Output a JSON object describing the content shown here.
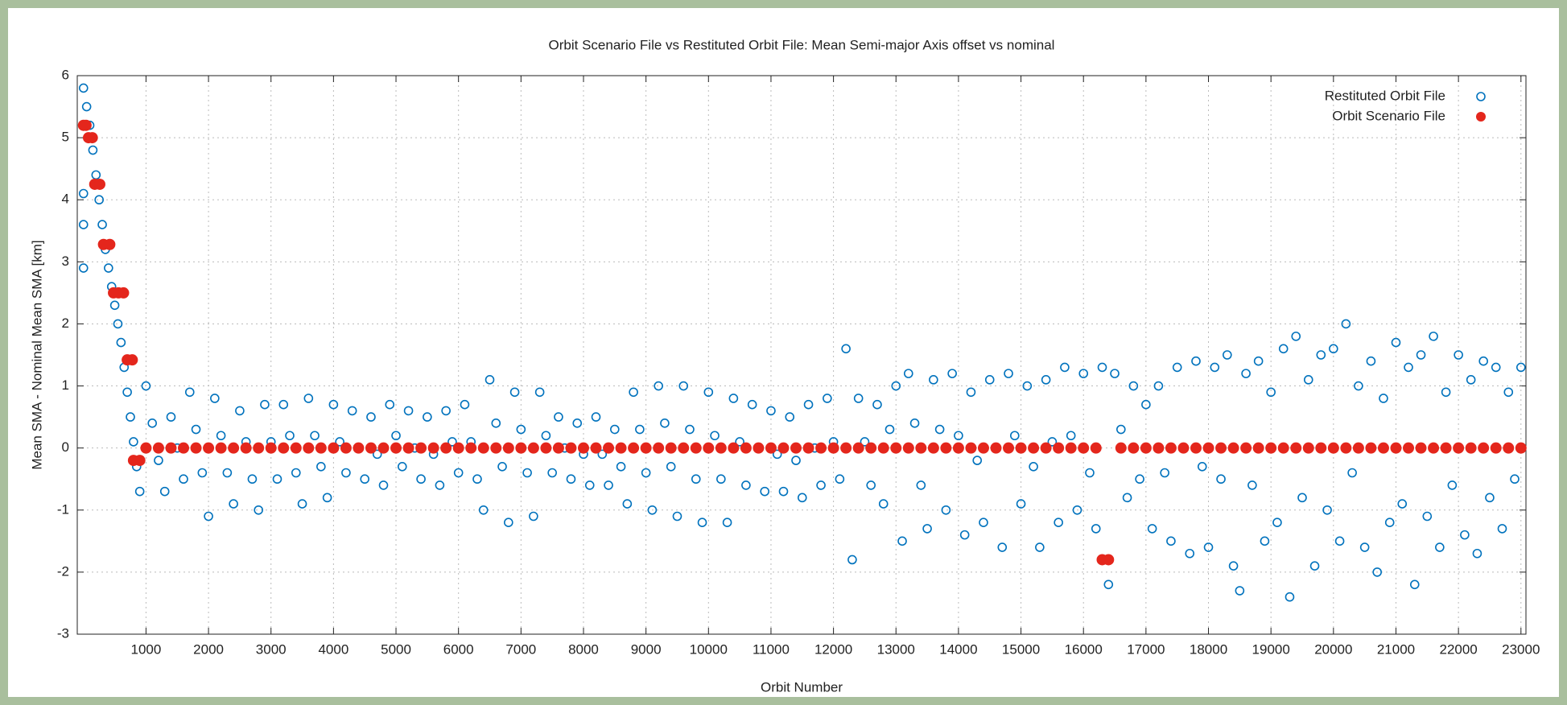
{
  "chart_data": {
    "type": "scatter",
    "title": "Orbit Scenario File vs Restituted Orbit File: Mean Semi-major Axis offset vs nominal",
    "x_label": "Orbit Number",
    "y_label": "Mean SMA - Nominal Mean SMA [km]",
    "xlim": [
      -100,
      23080
    ],
    "ylim": [
      -3,
      6
    ],
    "xticks": [
      1000,
      2000,
      3000,
      4000,
      5000,
      6000,
      7000,
      8000,
      9000,
      10000,
      11000,
      12000,
      13000,
      14000,
      15000,
      16000,
      17000,
      18000,
      19000,
      20000,
      21000,
      22000,
      23000
    ],
    "yticks": [
      -3,
      -2,
      -1,
      0,
      1,
      2,
      3,
      4,
      5,
      6
    ],
    "grid": true,
    "legend": "upper right",
    "series": [
      {
        "name": "Restituted Orbit File",
        "color": "#0072bd",
        "marker": "open",
        "x": [
          0,
          0,
          0,
          0,
          50,
          100,
          150,
          200,
          250,
          300,
          350,
          400,
          450,
          500,
          550,
          600,
          650,
          700,
          750,
          800,
          850,
          900,
          1000,
          1100,
          1200,
          1300,
          1400,
          1500,
          1600,
          1700,
          1800,
          1900,
          2000,
          2100,
          2200,
          2300,
          2400,
          2500,
          2600,
          2700,
          2800,
          2900,
          3000,
          3100,
          3200,
          3300,
          3400,
          3500,
          3600,
          3700,
          3800,
          3900,
          4000,
          4100,
          4200,
          4300,
          4400,
          4500,
          4600,
          4700,
          4800,
          4900,
          5000,
          5100,
          5200,
          5300,
          5400,
          5500,
          5600,
          5700,
          5800,
          5900,
          6000,
          6100,
          6200,
          6300,
          6400,
          6500,
          6600,
          6700,
          6800,
          6900,
          7000,
          7100,
          7200,
          7300,
          7400,
          7500,
          7600,
          7700,
          7800,
          7900,
          8000,
          8100,
          8200,
          8300,
          8400,
          8500,
          8600,
          8700,
          8800,
          8900,
          9000,
          9100,
          9200,
          9300,
          9400,
          9500,
          9600,
          9700,
          9800,
          9900,
          10000,
          10100,
          10200,
          10300,
          10400,
          10500,
          10600,
          10700,
          10800,
          10900,
          11000,
          11100,
          11200,
          11300,
          11400,
          11500,
          11600,
          11700,
          11800,
          11900,
          12000,
          12100,
          12200,
          12300,
          12400,
          12500,
          12600,
          12700,
          12800,
          12900,
          13000,
          13100,
          13200,
          13300,
          13400,
          13500,
          13600,
          13700,
          13800,
          13900,
          14000,
          14100,
          14200,
          14300,
          14400,
          14500,
          14600,
          14700,
          14800,
          14900,
          15000,
          15100,
          15200,
          15300,
          15400,
          15500,
          15600,
          15700,
          15800,
          15900,
          16000,
          16100,
          16200,
          16300,
          16400,
          16500,
          16600,
          16700,
          16800,
          16900,
          17000,
          17100,
          17200,
          17300,
          17400,
          17500,
          17600,
          17700,
          17800,
          17900,
          18000,
          18100,
          18200,
          18300,
          18400,
          18500,
          18600,
          18700,
          18800,
          18900,
          19000,
          19100,
          19200,
          19300,
          19400,
          19500,
          19600,
          19700,
          19800,
          19900,
          20000,
          20100,
          20200,
          20300,
          20400,
          20500,
          20600,
          20700,
          20800,
          20900,
          21000,
          21100,
          21200,
          21300,
          21400,
          21500,
          21600,
          21700,
          21800,
          21900,
          22000,
          22100,
          22200,
          22300,
          22400,
          22500,
          22600,
          22700,
          22800,
          22900,
          23000
        ],
        "values": [
          2.9,
          3.6,
          4.1,
          5.8,
          5.5,
          5.2,
          4.8,
          4.4,
          4.0,
          3.6,
          3.2,
          2.9,
          2.6,
          2.3,
          2.0,
          1.7,
          1.3,
          0.9,
          0.5,
          0.1,
          -0.3,
          -0.7,
          1.0,
          0.4,
          -0.2,
          -0.7,
          0.5,
          0.0,
          -0.5,
          0.9,
          0.3,
          -0.4,
          -1.1,
          0.8,
          0.2,
          -0.4,
          -0.9,
          0.6,
          0.1,
          -0.5,
          -1.0,
          0.7,
          0.1,
          -0.5,
          0.7,
          0.2,
          -0.4,
          -0.9,
          0.8,
          0.2,
          -0.3,
          -0.8,
          0.7,
          0.1,
          -0.4,
          0.6,
          0.0,
          -0.5,
          0.5,
          -0.1,
          -0.6,
          0.7,
          0.2,
          -0.3,
          0.6,
          0.0,
          -0.5,
          0.5,
          -0.1,
          -0.6,
          0.6,
          0.1,
          -0.4,
          0.7,
          0.1,
          -0.5,
          -1.0,
          1.1,
          0.4,
          -0.3,
          -1.2,
          0.9,
          0.3,
          -0.4,
          -1.1,
          0.9,
          0.2,
          -0.4,
          0.5,
          0.0,
          -0.5,
          0.4,
          -0.1,
          -0.6,
          0.5,
          -0.1,
          -0.6,
          0.3,
          -0.3,
          -0.9,
          0.9,
          0.3,
          -0.4,
          -1.0,
          1.0,
          0.4,
          -0.3,
          -1.1,
          1.0,
          0.3,
          -0.5,
          -1.2,
          0.9,
          0.2,
          -0.5,
          -1.2,
          0.8,
          0.1,
          -0.6,
          0.7,
          0.0,
          -0.7,
          0.6,
          -0.1,
          -0.7,
          0.5,
          -0.2,
          -0.8,
          0.7,
          0.0,
          -0.6,
          0.8,
          0.1,
          -0.5,
          1.6,
          -1.8,
          0.8,
          0.1,
          -0.6,
          0.7,
          -0.9,
          0.3,
          1.0,
          -1.5,
          1.2,
          0.4,
          -0.6,
          -1.3,
          1.1,
          0.3,
          -1.0,
          1.2,
          0.2,
          -1.4,
          0.9,
          -0.2,
          -1.2,
          1.1,
          0.0,
          -1.6,
          1.2,
          0.2,
          -0.9,
          1.0,
          -0.3,
          -1.6,
          1.1,
          0.1,
          -1.2,
          1.3,
          0.2,
          -1.0,
          1.2,
          -0.4,
          -1.3,
          1.3,
          -2.2,
          1.2,
          0.3,
          -0.8,
          1.0,
          -0.5,
          0.7,
          -1.3,
          1.0,
          -0.4,
          -1.5,
          1.3,
          0.0,
          -1.7,
          1.4,
          -0.3,
          -1.6,
          1.3,
          -0.5,
          1.5,
          -1.9,
          -2.3,
          1.2,
          -0.6,
          1.4,
          -1.5,
          0.9,
          -1.2,
          1.6,
          -2.4,
          1.8,
          -0.8,
          1.1,
          -1.9,
          1.5,
          -1.0,
          1.6,
          -1.5,
          2.0,
          -0.4,
          1.0,
          -1.6,
          1.4,
          -2.0,
          0.8,
          -1.2,
          1.7,
          -0.9,
          1.3,
          -2.2,
          1.5,
          -1.1,
          1.8,
          -1.6,
          0.9,
          -0.6,
          1.5,
          -1.4,
          1.1,
          -1.7,
          1.4,
          -0.8,
          1.3,
          -1.3,
          0.9,
          -0.5,
          1.3
        ]
      },
      {
        "name": "Orbit Scenario File",
        "color": "#e4261c",
        "marker": "filled",
        "x": [
          0,
          40,
          80,
          140,
          180,
          260,
          320,
          420,
          480,
          560,
          640,
          700,
          780,
          800,
          900,
          1000,
          1200,
          1400,
          1600,
          1800,
          2000,
          2200,
          2400,
          2600,
          2800,
          3000,
          3200,
          3400,
          3600,
          3800,
          4000,
          4200,
          4400,
          4600,
          4800,
          5000,
          5200,
          5400,
          5600,
          5800,
          6000,
          6200,
          6400,
          6600,
          6800,
          7000,
          7200,
          7400,
          7600,
          7800,
          8000,
          8200,
          8400,
          8600,
          8800,
          9000,
          9200,
          9400,
          9600,
          9800,
          10000,
          10200,
          10400,
          10600,
          10800,
          11000,
          11200,
          11400,
          11600,
          11800,
          12000,
          12200,
          12400,
          12600,
          12800,
          13000,
          13200,
          13400,
          13600,
          13800,
          14000,
          14200,
          14400,
          14600,
          14800,
          15000,
          15200,
          15400,
          15600,
          15800,
          16000,
          16200,
          16300,
          16400,
          16600,
          16800,
          17000,
          17200,
          17400,
          17600,
          17800,
          18000,
          18200,
          18400,
          18600,
          18800,
          19000,
          19200,
          19400,
          19600,
          19800,
          20000,
          20200,
          20400,
          20600,
          20800,
          21000,
          21200,
          21400,
          21600,
          21800,
          22000,
          22200,
          22400,
          22600,
          22800,
          23000
        ],
        "values": [
          5.2,
          5.2,
          5.0,
          5.0,
          4.25,
          4.25,
          3.28,
          3.28,
          2.5,
          2.5,
          2.5,
          1.42,
          1.42,
          -0.2,
          -0.2,
          0,
          0,
          0,
          0,
          0,
          0,
          0,
          0,
          0,
          0,
          0,
          0,
          0,
          0,
          0,
          0,
          0,
          0,
          0,
          0,
          0,
          0,
          0,
          0,
          0,
          0,
          0,
          0,
          0,
          0,
          0,
          0,
          0,
          0,
          0,
          0,
          0,
          0,
          0,
          0,
          0,
          0,
          0,
          0,
          0,
          0,
          0,
          0,
          0,
          0,
          0,
          0,
          0,
          0,
          0,
          0,
          0,
          0,
          0,
          0,
          0,
          0,
          0,
          0,
          0,
          0,
          0,
          0,
          0,
          0,
          0,
          0,
          0,
          0,
          0,
          0,
          0,
          -1.8,
          -1.8,
          0,
          0,
          0,
          0,
          0,
          0,
          0,
          0,
          0,
          0,
          0,
          0,
          0,
          0,
          0,
          0,
          0,
          0,
          0,
          0,
          0,
          0,
          0,
          0,
          0,
          0,
          0,
          0,
          0,
          0,
          0,
          0,
          0
        ]
      }
    ]
  }
}
